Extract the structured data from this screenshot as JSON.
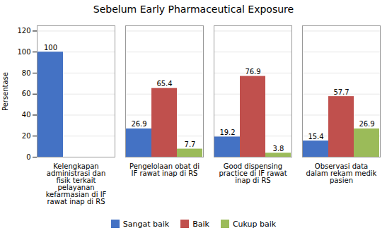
{
  "chart_data": {
    "type": "bar",
    "title": "Sebelum Early Pharmaceutical Exposure",
    "ylabel": "Persentase",
    "categories": [
      "Kelengkapan\nadministrasi dan\nfisik terkait\npelayanan\nkefarmasian di IF\nrawat inap di RS",
      "Pengelolaan obat di\nIF rawat inap di RS",
      "Good dispensing\npractice di IF rawat\ninap di RS",
      "Observasi data\ndalam rekam medik\npasien"
    ],
    "series": [
      {
        "name": "Sangat baik",
        "color": "#4472C4",
        "values": [
          100,
          26.9,
          19.2,
          15.4
        ]
      },
      {
        "name": "Baik",
        "color": "#C0504D",
        "values": [
          0,
          65.4,
          76.9,
          57.7
        ],
        "value_labels": [
          null,
          "65.4",
          "76.9",
          "57.7"
        ]
      },
      {
        "name": "Cukup baik",
        "color": "#9BBB59",
        "values": [
          0,
          7.7,
          3.8,
          26.9
        ],
        "value_labels": [
          null,
          "7.7",
          "3.8",
          "26.9"
        ]
      }
    ],
    "ylim": [
      0,
      125
    ],
    "yticks": [
      0,
      20,
      40,
      60,
      80,
      100,
      120
    ],
    "grid": true,
    "legend": "bottom",
    "data_labels": true
  }
}
